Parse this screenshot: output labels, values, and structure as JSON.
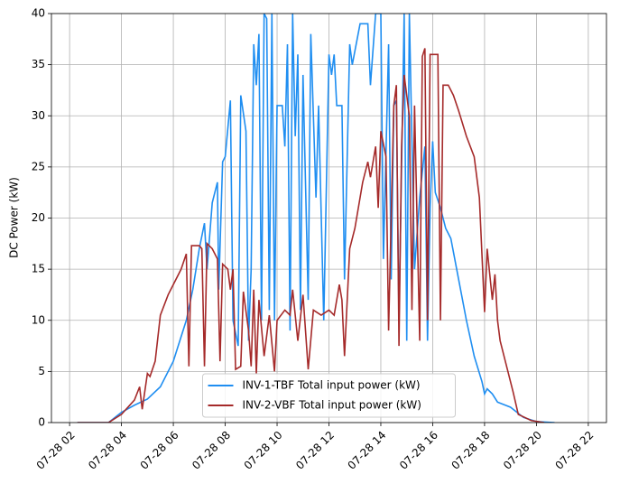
{
  "chart_data": {
    "type": "line",
    "y_label": "DC Power (kW)",
    "xlim": [
      1.3,
      22.7
    ],
    "ylim": [
      0,
      40
    ],
    "xticks": [
      {
        "value": 2,
        "label": "07-28 02"
      },
      {
        "value": 4,
        "label": "07-28 04"
      },
      {
        "value": 6,
        "label": "07-28 06"
      },
      {
        "value": 8,
        "label": "07-28 08"
      },
      {
        "value": 10,
        "label": "07-28 10"
      },
      {
        "value": 12,
        "label": "07-28 12"
      },
      {
        "value": 14,
        "label": "07-28 14"
      },
      {
        "value": 16,
        "label": "07-28 16"
      },
      {
        "value": 18,
        "label": "07-28 18"
      },
      {
        "value": 20,
        "label": "07-28 20"
      },
      {
        "value": 22,
        "label": "07-28 22"
      }
    ],
    "yticks": [
      0,
      5,
      10,
      15,
      20,
      25,
      30,
      35,
      40
    ],
    "grid": true,
    "legend": "lower center",
    "series": [
      {
        "name": "INV-1-TBF Total input power (kW)",
        "color": "#1f8ef1",
        "x": [
          2.3,
          3.5,
          4,
          4.5,
          5,
          5.5,
          6,
          6.5,
          6.75,
          7,
          7.2,
          7.3,
          7.5,
          7.7,
          7.75,
          7.9,
          8,
          8.2,
          8.3,
          8.5,
          8.6,
          8.8,
          8.9,
          9.0,
          9.1,
          9.2,
          9.3,
          9.4,
          9.5,
          9.6,
          9.7,
          9.8,
          9.9,
          10.0,
          10.2,
          10.3,
          10.4,
          10.5,
          10.6,
          10.7,
          10.8,
          10.9,
          11.0,
          11.2,
          11.3,
          11.5,
          11.6,
          11.8,
          12.0,
          12.1,
          12.2,
          12.3,
          12.5,
          12.6,
          12.8,
          12.9,
          13.2,
          13.5,
          13.6,
          13.8,
          14.0,
          14.1,
          14.3,
          14.4,
          14.5,
          14.6,
          14.7,
          14.9,
          15.0,
          15.1,
          15.3,
          15.5,
          15.7,
          15.8,
          15.9,
          16.0,
          16.1,
          16.3,
          16.5,
          16.7,
          17.0,
          17.3,
          17.6,
          17.9,
          18.0,
          18.1,
          18.3,
          18.5,
          19.0,
          19.5,
          20.0,
          20.7
        ],
        "values": [
          0,
          0,
          1,
          1.7,
          2.3,
          3.5,
          6,
          10,
          13,
          17,
          19.5,
          15,
          21.5,
          23.5,
          13,
          25.5,
          26,
          31.5,
          10,
          7.5,
          32,
          28.5,
          8,
          15,
          37,
          33,
          38,
          10,
          40,
          39.5,
          11,
          40,
          10,
          31,
          31,
          27,
          37,
          9,
          40,
          28,
          36,
          11,
          34,
          12,
          38,
          22,
          31,
          10,
          36,
          34,
          36,
          31,
          31,
          14,
          37,
          35,
          39,
          39,
          33,
          40,
          40,
          16,
          37,
          14,
          31,
          31.5,
          10,
          40,
          8,
          40,
          15,
          22,
          27,
          8,
          21,
          27.5,
          22.5,
          21,
          19,
          18,
          14,
          10,
          6.5,
          4,
          2.8,
          3.3,
          2.8,
          2,
          1.5,
          0.5,
          0.1,
          0
        ]
      },
      {
        "name": "INV-2-VBF Total input power (kW)",
        "color": "#a52a2a",
        "x": [
          2.3,
          3.5,
          4,
          4.5,
          4.7,
          4.8,
          5,
          5.1,
          5.3,
          5.5,
          5.8,
          6.0,
          6.3,
          6.5,
          6.6,
          6.7,
          7.0,
          7.1,
          7.2,
          7.3,
          7.5,
          7.7,
          7.8,
          7.9,
          8.1,
          8.2,
          8.3,
          8.4,
          8.6,
          8.7,
          8.9,
          9.0,
          9.1,
          9.2,
          9.3,
          9.5,
          9.7,
          9.9,
          10.0,
          10.3,
          10.5,
          10.6,
          10.8,
          11.0,
          11.2,
          11.4,
          11.7,
          12.0,
          12.2,
          12.4,
          12.5,
          12.6,
          12.8,
          13.0,
          13.3,
          13.5,
          13.6,
          13.8,
          13.9,
          14.0,
          14.2,
          14.3,
          14.5,
          14.6,
          14.7,
          14.8,
          14.9,
          15.1,
          15.2,
          15.3,
          15.5,
          15.6,
          15.7,
          15.8,
          15.9,
          16.2,
          16.3,
          16.4,
          16.6,
          16.8,
          17.0,
          17.3,
          17.6,
          17.8,
          18.0,
          18.1,
          18.3,
          18.4,
          18.5,
          18.6,
          18.8,
          19.1,
          19.3,
          19.8,
          20.3
        ],
        "values": [
          0,
          0,
          0.8,
          2.2,
          3.5,
          1.3,
          4.8,
          4.5,
          6,
          10.5,
          12.5,
          13.5,
          15,
          16.5,
          5.5,
          17.3,
          17.3,
          17,
          5.5,
          17.5,
          17,
          16,
          6,
          15.5,
          15,
          13,
          15,
          5.2,
          5.5,
          12.8,
          9,
          5.5,
          13,
          4.8,
          12,
          6.5,
          10.5,
          5,
          10,
          11,
          10.5,
          13,
          8,
          12.5,
          5.2,
          11,
          10.5,
          11,
          10.5,
          13.5,
          12,
          6.5,
          17,
          19,
          23.5,
          25.5,
          24,
          27,
          21,
          28.5,
          26,
          9,
          31,
          33,
          7.5,
          27,
          34,
          30,
          11,
          31,
          8,
          35.8,
          36.6,
          10,
          36,
          36,
          10,
          33,
          33,
          32,
          30.5,
          28,
          26,
          22,
          10.8,
          17,
          12,
          14.5,
          10,
          8,
          6,
          3,
          0.8,
          0.2,
          0
        ]
      }
    ]
  }
}
